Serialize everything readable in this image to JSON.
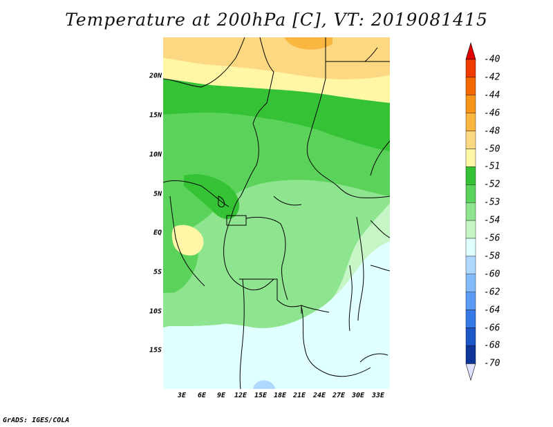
{
  "title": "Temperature at 200hPa [C], VT: 2019081415",
  "credit": "GrADS: IGES/COLA",
  "map": {
    "lat_labels": [
      "20N",
      "15N",
      "10N",
      "5N",
      "EQ",
      "5S",
      "10S",
      "15S"
    ],
    "lon_labels": [
      "3E",
      "6E",
      "9E",
      "12E",
      "15E",
      "18E",
      "21E",
      "24E",
      "27E",
      "30E",
      "33E"
    ]
  },
  "legend": {
    "labels": [
      "-40",
      "-42",
      "-44",
      "-46",
      "-48",
      "-50",
      "-51",
      "-52",
      "-53",
      "-54",
      "-56",
      "-58",
      "-60",
      "-62",
      "-64",
      "-66",
      "-68",
      "-70"
    ],
    "colors": [
      "#e00000",
      "#ef3a00",
      "#f46800",
      "#f79518",
      "#f9b640",
      "#fdd882",
      "#fff6a6",
      "#35c235",
      "#5bd35b",
      "#8fe58f",
      "#c6f5c6",
      "#e0ffff",
      "#aed8ff",
      "#84bbfb",
      "#5a9cf3",
      "#3479e5",
      "#1d56c6",
      "#0e3598",
      "#06156a"
    ],
    "top_triangle_color": "#e00000",
    "bottom_triangle_color": "#e0e0ff"
  },
  "colors": {
    "land_border": "#000000",
    "background": "#ffffff"
  }
}
